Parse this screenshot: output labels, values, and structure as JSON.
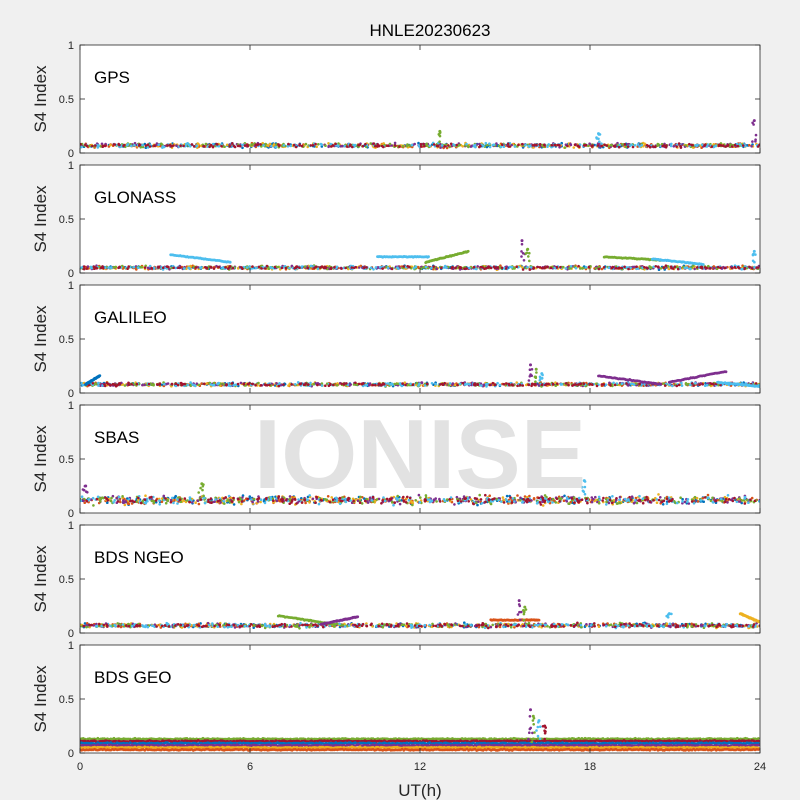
{
  "title": "HNLE20230623",
  "watermark": "IONISE",
  "xlabel": "UT(h)",
  "ylabel": "S4 Index",
  "colors": {
    "background": "#f0f0f0",
    "axes_bg": "#ffffff",
    "axis": "#262626",
    "watermark": "#d9d9d9",
    "series": [
      "#0072BD",
      "#D95319",
      "#EDB120",
      "#7E2F8E",
      "#77AC30",
      "#4DBEEE",
      "#A2142F"
    ]
  },
  "chart_data": [
    {
      "type": "scatter",
      "panel_label": "GPS",
      "xlim": [
        0,
        24
      ],
      "ylim": [
        0,
        1
      ],
      "xticks": [
        0,
        6,
        12,
        18,
        24
      ],
      "yticks": [
        0,
        0.5,
        1
      ],
      "ytick_labels": [
        "0",
        "0.5",
        "1"
      ],
      "baseline": 0.07,
      "spread": 0.05,
      "events": [
        {
          "x": 23.8,
          "y": 0.3
        },
        {
          "x": 12.7,
          "y": 0.2
        },
        {
          "x": 18.3,
          "y": 0.18
        }
      ]
    },
    {
      "type": "scatter",
      "panel_label": "GLONASS",
      "xlim": [
        0,
        24
      ],
      "ylim": [
        0,
        1
      ],
      "xticks": [
        0,
        6,
        12,
        18,
        24
      ],
      "yticks": [
        0,
        0.5,
        1
      ],
      "ytick_labels": [
        "0",
        "0.5",
        "1"
      ],
      "baseline": 0.05,
      "spread": 0.04,
      "arcs": [
        {
          "x0": 3.2,
          "x1": 5.3,
          "y0": 0.17,
          "y1": 0.1,
          "series": 5
        },
        {
          "x0": 10.5,
          "x1": 12.3,
          "y0": 0.15,
          "y1": 0.15,
          "series": 5
        },
        {
          "x0": 12.2,
          "x1": 13.7,
          "y0": 0.1,
          "y1": 0.2,
          "series": 4
        },
        {
          "x0": 18.5,
          "x1": 20.5,
          "y0": 0.15,
          "y1": 0.12,
          "series": 4
        },
        {
          "x0": 20.2,
          "x1": 22.0,
          "y0": 0.13,
          "y1": 0.08,
          "series": 5
        }
      ],
      "events": [
        {
          "x": 15.6,
          "y": 0.3
        },
        {
          "x": 15.8,
          "y": 0.22
        },
        {
          "x": 23.8,
          "y": 0.2
        }
      ]
    },
    {
      "type": "scatter",
      "panel_label": "GALILEO",
      "xlim": [
        0,
        24
      ],
      "ylim": [
        0,
        1
      ],
      "xticks": [
        0,
        6,
        12,
        18,
        24
      ],
      "yticks": [
        0,
        0.5,
        1
      ],
      "ytick_labels": [
        "0",
        "0.5",
        "1"
      ],
      "baseline": 0.08,
      "spread": 0.04,
      "arcs": [
        {
          "x0": 0.2,
          "x1": 0.7,
          "y0": 0.08,
          "y1": 0.16,
          "series": 0
        },
        {
          "x0": 18.3,
          "x1": 20.5,
          "y0": 0.16,
          "y1": 0.08,
          "series": 3
        },
        {
          "x0": 20.8,
          "x1": 22.8,
          "y0": 0.1,
          "y1": 0.2,
          "series": 3
        },
        {
          "x0": 22.5,
          "x1": 24.0,
          "y0": 0.1,
          "y1": 0.06,
          "series": 5
        }
      ],
      "events": [
        {
          "x": 15.9,
          "y": 0.26
        },
        {
          "x": 16.1,
          "y": 0.22
        },
        {
          "x": 16.3,
          "y": 0.18
        }
      ]
    },
    {
      "type": "scatter",
      "panel_label": "SBAS",
      "xlim": [
        0,
        24
      ],
      "ylim": [
        0,
        1
      ],
      "xticks": [
        0,
        6,
        12,
        18,
        24
      ],
      "yticks": [
        0,
        0.5,
        1
      ],
      "ytick_labels": [
        "0",
        "0.5",
        "1"
      ],
      "baseline": 0.12,
      "spread": 0.1,
      "events": [
        {
          "x": 0.2,
          "y": 0.25
        },
        {
          "x": 4.3,
          "y": 0.27
        },
        {
          "x": 17.8,
          "y": 0.3
        }
      ]
    },
    {
      "type": "scatter",
      "panel_label": "BDS NGEO",
      "xlim": [
        0,
        24
      ],
      "ylim": [
        0,
        1
      ],
      "xticks": [
        0,
        6,
        12,
        18,
        24
      ],
      "yticks": [
        0,
        0.5,
        1
      ],
      "ytick_labels": [
        "0",
        "0.5",
        "1"
      ],
      "baseline": 0.07,
      "spread": 0.05,
      "arcs": [
        {
          "x0": 7.0,
          "x1": 9.0,
          "y0": 0.16,
          "y1": 0.08,
          "series": 4
        },
        {
          "x0": 8.5,
          "x1": 9.8,
          "y0": 0.08,
          "y1": 0.15,
          "series": 3
        },
        {
          "x0": 14.5,
          "x1": 16.2,
          "y0": 0.12,
          "y1": 0.12,
          "series": 1
        },
        {
          "x0": 23.3,
          "x1": 24.0,
          "y0": 0.18,
          "y1": 0.1,
          "series": 2
        }
      ],
      "events": [
        {
          "x": 15.5,
          "y": 0.3
        },
        {
          "x": 15.7,
          "y": 0.24
        },
        {
          "x": 20.8,
          "y": 0.18
        }
      ]
    },
    {
      "type": "scatter",
      "panel_label": "BDS GEO",
      "xlim": [
        0,
        24
      ],
      "ylim": [
        0,
        1
      ],
      "xticks": [
        0,
        6,
        12,
        18,
        24
      ],
      "yticks": [
        0,
        0.5,
        1
      ],
      "ytick_labels": [
        "0",
        "0.5",
        "1"
      ],
      "xtick_labels": [
        "0",
        "6",
        "12",
        "18",
        "24"
      ],
      "bands": [
        {
          "y": 0.13,
          "series": 4
        },
        {
          "y": 0.11,
          "series": 6
        },
        {
          "y": 0.09,
          "series": 0
        },
        {
          "y": 0.07,
          "series": 3
        },
        {
          "y": 0.05,
          "series": 2
        },
        {
          "y": 0.03,
          "series": 1
        }
      ],
      "events": [
        {
          "x": 15.9,
          "y": 0.4
        },
        {
          "x": 16.0,
          "y": 0.34
        },
        {
          "x": 16.2,
          "y": 0.3
        },
        {
          "x": 16.4,
          "y": 0.25
        }
      ]
    }
  ]
}
